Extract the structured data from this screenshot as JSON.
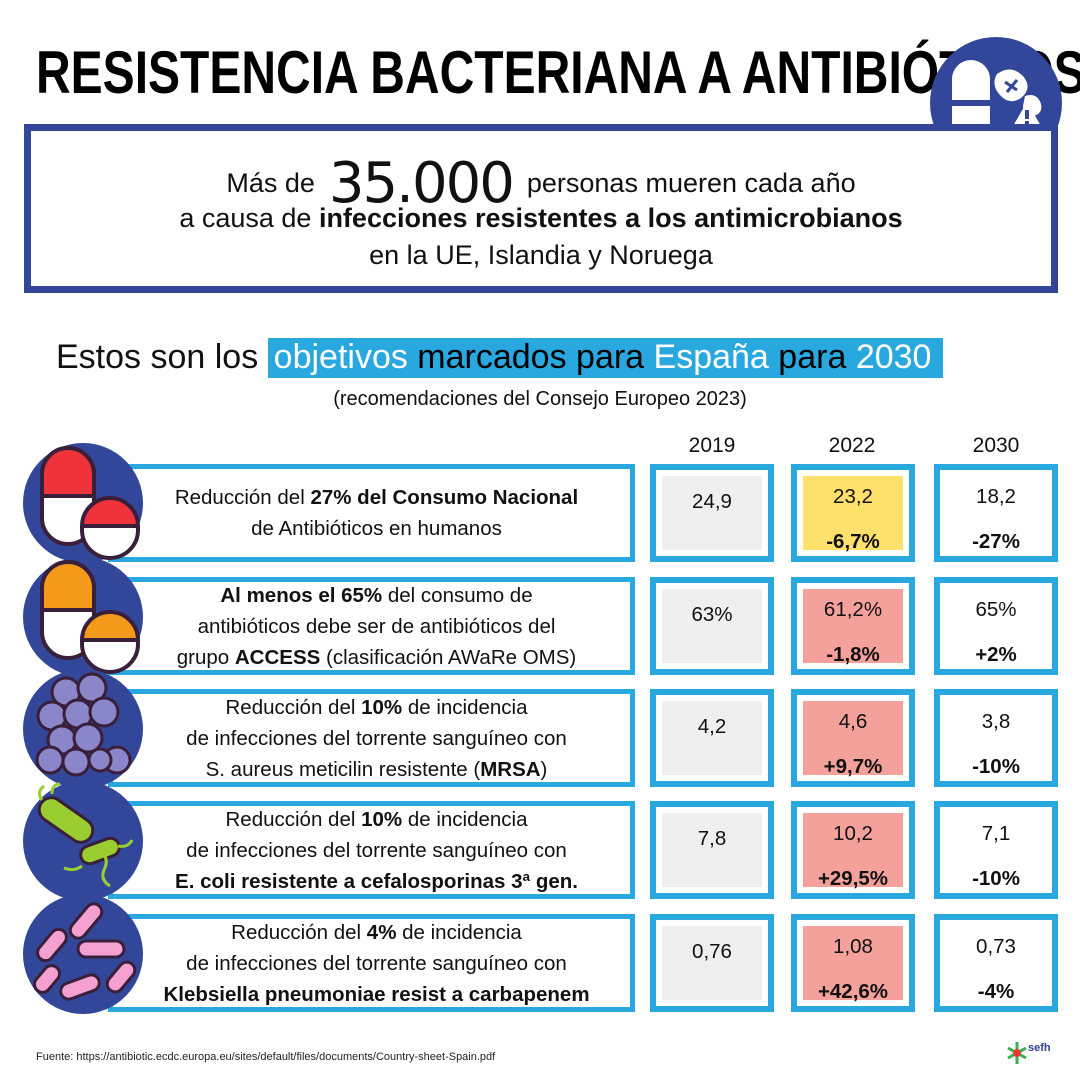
{
  "title": "RESISTENCIA BACTERIANA A ANTIBIÓTICOS",
  "intro": {
    "pre": "Más de",
    "number": "35.000",
    "post": "personas mueren cada año",
    "line2_pre": "a causa de ",
    "line2_bold": "infecciones resistentes a los antimicrobianos",
    "line3": "en la UE, Islandia y Noruega"
  },
  "objectives": {
    "lead": "Estos son los ",
    "hl_1": "objetivos",
    "hl_2": " marcados para ",
    "hl_3": "España",
    "hl_4": " para ",
    "hl_5": "2030",
    "subtitle": "(recomendaciones del Consejo Europeo 2023)"
  },
  "years": [
    "2019",
    "2022",
    "2030"
  ],
  "rows": [
    {
      "line1": [
        {
          "t": "Reducción del ",
          "b": false
        },
        {
          "t": "27% del Consumo Nacional",
          "b": true
        }
      ],
      "line2": [
        {
          "t": "de Antibióticos en humanos",
          "b": false
        }
      ],
      "line3": [],
      "v2019": "24,9",
      "v2022": "23,2",
      "p2022": "-6,7%",
      "v2030": "18,2",
      "p2030": "-27%",
      "status": "yellow"
    },
    {
      "line1": [
        {
          "t": "Al menos el 65%",
          "b": true
        },
        {
          "t": " del consumo de",
          "b": false
        }
      ],
      "line2": [
        {
          "t": "antibióticos debe ser de antibióticos del",
          "b": false
        }
      ],
      "line3": [
        {
          "t": "grupo ",
          "b": false
        },
        {
          "t": "ACCESS",
          "b": true
        },
        {
          "t": " (clasificación AWaRe OMS)",
          "b": false
        }
      ],
      "v2019": "63%",
      "v2022": "61,2%",
      "p2022": "-1,8%",
      "v2030": "65%",
      "p2030": "+2%",
      "status": "pink"
    },
    {
      "line1": [
        {
          "t": "Reducción del ",
          "b": false
        },
        {
          "t": "10%",
          "b": true
        },
        {
          "t": " de incidencia",
          "b": false
        }
      ],
      "line2": [
        {
          "t": "de infecciones del torrente sanguíneo con",
          "b": false
        }
      ],
      "line3": [
        {
          "t": "S. aureus meticilin resistente (",
          "b": false
        },
        {
          "t": "MRSA",
          "b": true
        },
        {
          "t": ")",
          "b": false
        }
      ],
      "v2019": "4,2",
      "v2022": "4,6",
      "p2022": "+9,7%",
      "v2030": "3,8",
      "p2030": "-10%",
      "status": "pink"
    },
    {
      "line1": [
        {
          "t": "Reducción del ",
          "b": false
        },
        {
          "t": "10%",
          "b": true
        },
        {
          "t": " de incidencia",
          "b": false
        }
      ],
      "line2": [
        {
          "t": "de infecciones del torrente sanguíneo con",
          "b": false
        }
      ],
      "line3": [
        {
          "t": "E. coli resistente a cefalosporinas 3ª gen.",
          "b": true
        }
      ],
      "v2019": "7,8",
      "v2022": "10,2",
      "p2022": "+29,5%",
      "v2030": "7,1",
      "p2030": "-10%",
      "status": "pink"
    },
    {
      "line1": [
        {
          "t": "Reducción del ",
          "b": false
        },
        {
          "t": "4%",
          "b": true
        },
        {
          "t": " de incidencia",
          "b": false
        }
      ],
      "line2": [
        {
          "t": "de infecciones del torrente sanguíneo con",
          "b": false
        }
      ],
      "line3": [
        {
          "t": "Klebsiella pneumoniae resist a carbapenem",
          "b": true
        }
      ],
      "v2019": "0,76",
      "v2022": "1,08",
      "p2022": "+42,6%",
      "v2030": "0,73",
      "p2030": "-4%",
      "status": "pink"
    }
  ],
  "icons": [
    "pills-bacteria-warning-icon",
    "red-capsule-pill-icon",
    "orange-capsule-pill-icon",
    "staphylococcus-cluster-icon",
    "e-coli-bacteria-icon",
    "klebsiella-rods-icon",
    "sefh-logo-icon"
  ],
  "colors": {
    "navy": "#33479a",
    "blue": "#29a8e0",
    "yellow": "#ffe06a",
    "pink": "#f4a19b",
    "grey": "#efefef"
  },
  "source": "Fuente: https://antibiotic.ecdc.europa.eu/sites/default/files/documents/Country-sheet-Spain.pdf",
  "logo_text": "sefh"
}
